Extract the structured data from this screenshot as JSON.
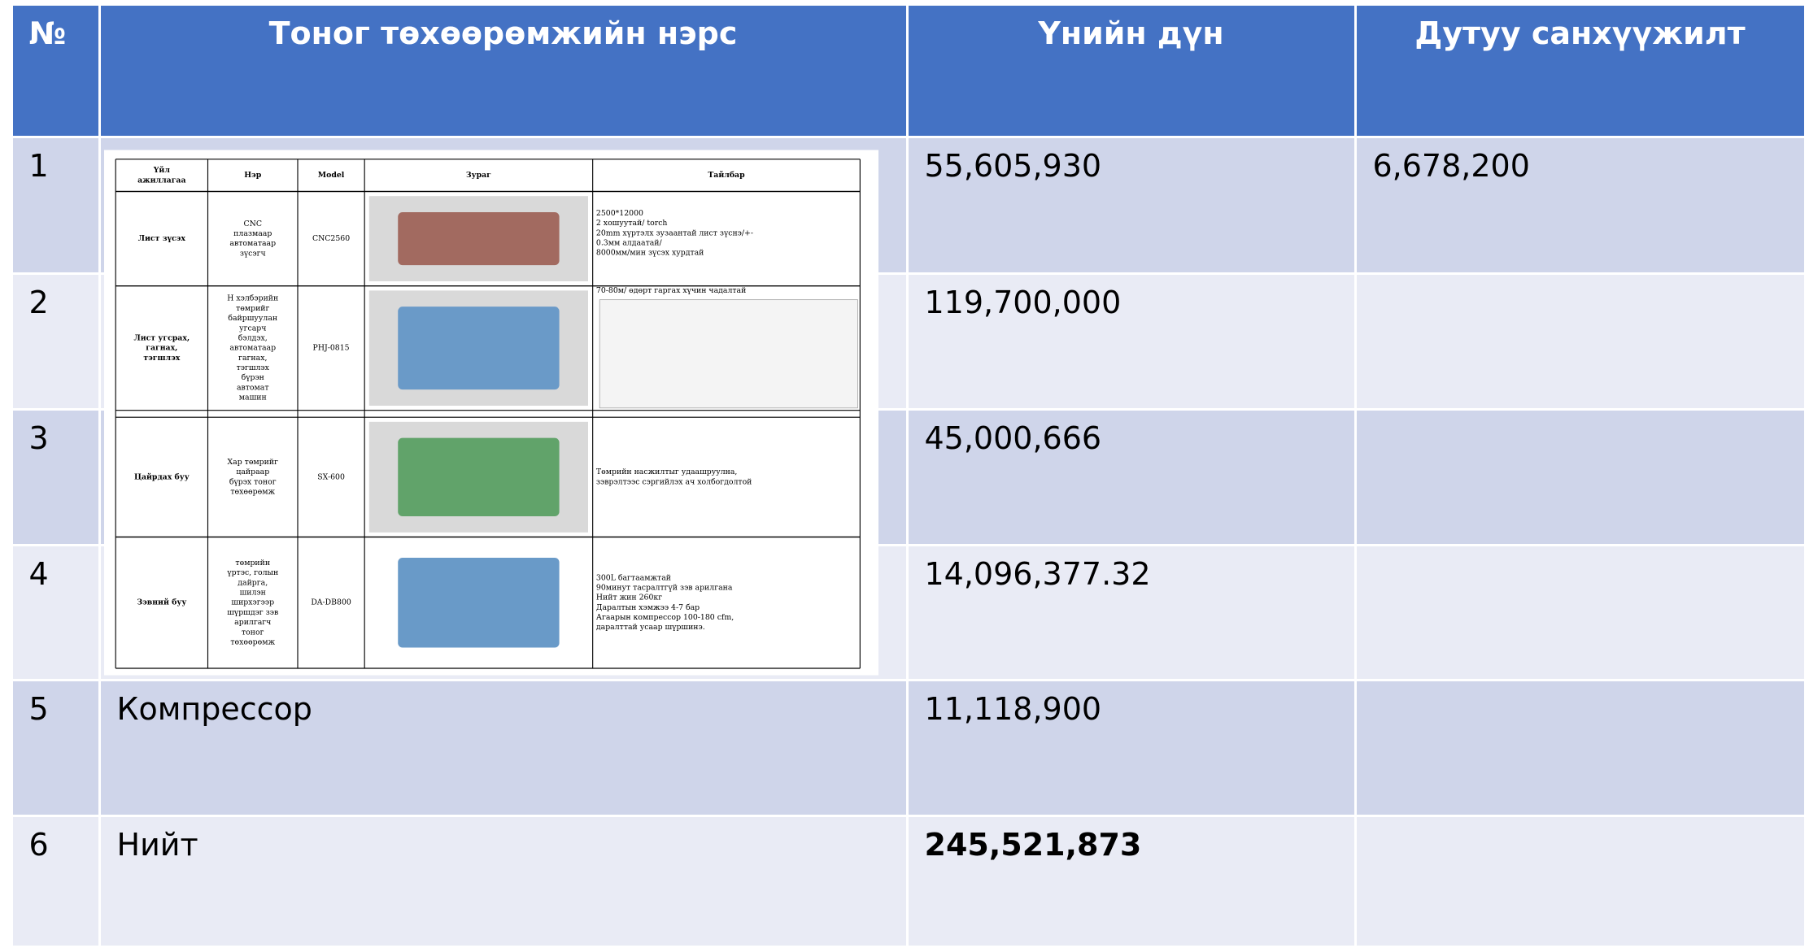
{
  "table": {
    "header": [
      "№",
      "Тоног төхөөрөмжийн нэрс",
      "Үнийн дүн",
      "Дутуу санхүүжилт"
    ],
    "rows": [
      {
        "no": "1",
        "price": "55,605,930",
        "deficit": "6,678,200"
      },
      {
        "no": "2",
        "price": "119,700,000"
      },
      {
        "no": "3",
        "price": "45,000,666"
      },
      {
        "no": "4",
        "price": "14,096,377.32"
      },
      {
        "no": "5",
        "name": "Компрессор",
        "price": "11,118,900"
      },
      {
        "no": "6",
        "name": "Нийт",
        "price": "245,521,873"
      }
    ]
  },
  "equipment_image": {
    "headers": [
      [
        "Үйл",
        "ажиллагаа"
      ],
      [
        "Нэр"
      ],
      [
        "Model"
      ],
      [
        "Зураг"
      ],
      [
        "Тайлбар"
      ]
    ],
    "rows": [
      {
        "activity": [
          "Лист зүсэх"
        ],
        "name": [
          "CNC",
          "плазмаар",
          "автоматаар",
          "зүсэгч"
        ],
        "model": "CNC2560",
        "description": [
          "2500*12000",
          "2 хошуутай/ torch",
          "20mm хүртэлх зузаантай лист зүснэ/+-",
          "0.3мм алдаатай/",
          "8000мм/мин зүсэх хурдтай"
        ]
      },
      {
        "activity": [
          "Лист угсрах,",
          "гагнах,",
          "тэгшлэх"
        ],
        "name": [
          "H хэлбэрийн",
          "төмрийг",
          "байршуулан",
          "угсарч",
          "бэлдэх,",
          "автоматаар",
          "гагнах,",
          "тэгшлэх",
          "бүрэн",
          "автомат",
          "машин"
        ],
        "model": "PHJ-0815",
        "description": [
          "70-80м/ өдөрт гаргах хүчин чадалтай"
        ]
      },
      {
        "activity": [
          "Цайрдах буу"
        ],
        "name": [
          "Хар төмрийг",
          "цайраар",
          "бүрэх тоног",
          "төхөөрөмж"
        ],
        "model": "SX-600",
        "description": [
          "Төмрийн насжилтыг удаашруулна,",
          "зэврэлтээс сэргийлэх ач холбогдолтой"
        ]
      },
      {
        "activity": [
          "Зэвний буу"
        ],
        "name": [
          "төмрийн",
          "үртэс, голын",
          "дайрга,",
          "шилэн",
          "ширхэгээр",
          "шүршдэг зэв",
          "арилгагч",
          "тоног",
          "төхөөрөмж"
        ],
        "model": "DA-DB800",
        "description": [
          "300L багтаамжтай",
          "90минут тасралтгүй зэв арилгана",
          "Нийт жин 260кг",
          "Даралтын хэмжээ 4-7 бар",
          "Агаарын компрессор 100-180 cfm,",
          "даралттай усаар шүршинэ."
        ]
      }
    ]
  }
}
